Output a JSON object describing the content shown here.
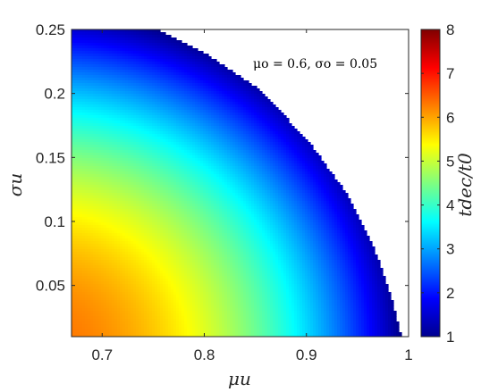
{
  "chart_data": {
    "type": "heatmap",
    "title": "",
    "annotation": "μo = 0.6, σo = 0.05",
    "xlabel": "μu",
    "ylabel": "σu",
    "colorbar_label": "tdec/t0",
    "xlim": [
      0.67,
      1.0
    ],
    "ylim": [
      0.01,
      0.25
    ],
    "xticks": [
      0.7,
      0.8,
      0.9,
      1.0
    ],
    "xtick_labels": [
      "0.7",
      "0.8",
      "0.9",
      "1"
    ],
    "yticks": [
      0.05,
      0.1,
      0.15,
      0.2,
      0.25
    ],
    "ytick_labels": [
      "0.05",
      "0.1",
      "0.15",
      "0.2",
      "0.25"
    ],
    "colorbar_range": [
      1,
      8
    ],
    "colorbar_ticks": [
      1,
      2,
      3,
      4,
      5,
      6,
      7,
      8
    ],
    "colorbar_tick_labels": [
      "1",
      "2",
      "3",
      "4",
      "5",
      "6",
      "7",
      "8"
    ],
    "colormap": "jet",
    "boundary": [
      {
        "mu": 0.755,
        "sigma": 0.25
      },
      {
        "mu": 0.8,
        "sigma": 0.232
      },
      {
        "mu": 0.85,
        "sigma": 0.205
      },
      {
        "mu": 0.9,
        "sigma": 0.165
      },
      {
        "mu": 0.94,
        "sigma": 0.121
      },
      {
        "mu": 0.97,
        "sigma": 0.072
      },
      {
        "mu": 0.985,
        "sigma": 0.035
      },
      {
        "mu": 0.993,
        "sigma": 0.01
      }
    ],
    "sample_values": [
      {
        "mu": 0.67,
        "sigma": 0.01,
        "value": 6.0
      },
      {
        "mu": 0.7,
        "sigma": 0.15,
        "value": 4.7
      },
      {
        "mu": 0.7,
        "sigma": 0.25,
        "value": 1.5
      },
      {
        "mu": 0.8,
        "sigma": 0.1,
        "value": 4.1
      },
      {
        "mu": 0.9,
        "sigma": 0.05,
        "value": 2.5
      },
      {
        "mu": 0.98,
        "sigma": 0.01,
        "value": 1.1
      }
    ]
  }
}
